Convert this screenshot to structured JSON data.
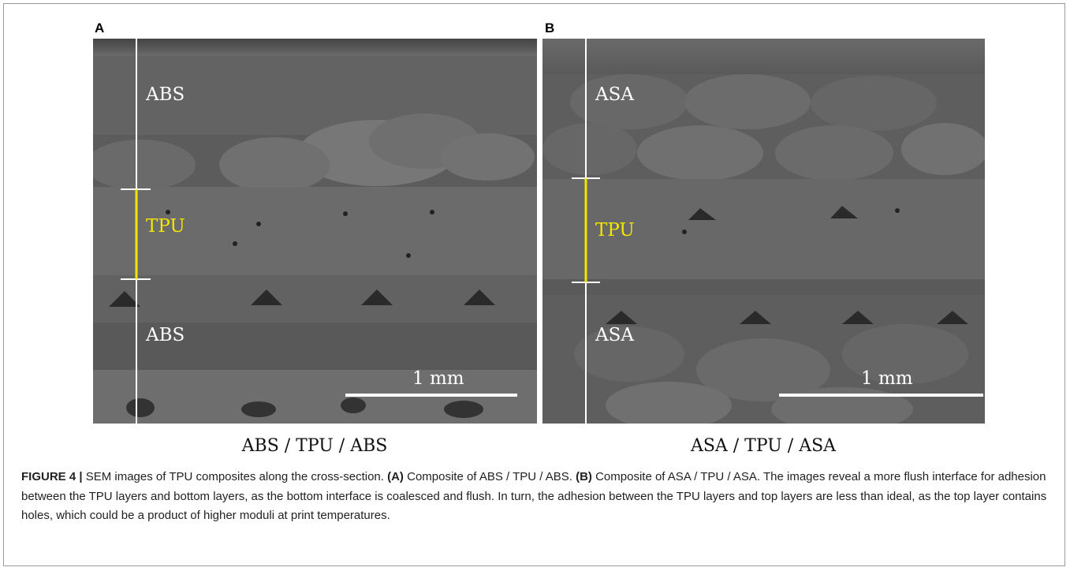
{
  "panels": [
    {
      "letter": "A",
      "top_layer": "ABS",
      "middle_layer": "TPU",
      "bottom_layer": "ABS",
      "scale_bar": "1 mm",
      "caption": "ABS / TPU / ABS"
    },
    {
      "letter": "B",
      "top_layer": "ASA",
      "middle_layer": "TPU",
      "bottom_layer": "ASA",
      "scale_bar": "1 mm",
      "caption": "ASA / TPU / ASA"
    }
  ],
  "caption": {
    "label": "FIGURE 4 |",
    "intro": " SEM images of TPU composites along the cross-section. ",
    "a_ref": "(A)",
    "a_text": " Composite of ABS / TPU / ABS. ",
    "b_ref": "(B)",
    "b_text": " Composite of ASA / TPU / ASA. The images reveal a more flush interface for adhesion between the TPU layers and bottom layers, as the bottom interface is coalesced and flush. In turn, the adhesion between the TPU layers and top layers are less than ideal, as the top layer contains holes, which could be a product of higher moduli at print temperatures."
  },
  "colors": {
    "highlight_line": "#f2e600",
    "marker_line": "#ffffff",
    "sem_base": "#5e5e5e"
  }
}
